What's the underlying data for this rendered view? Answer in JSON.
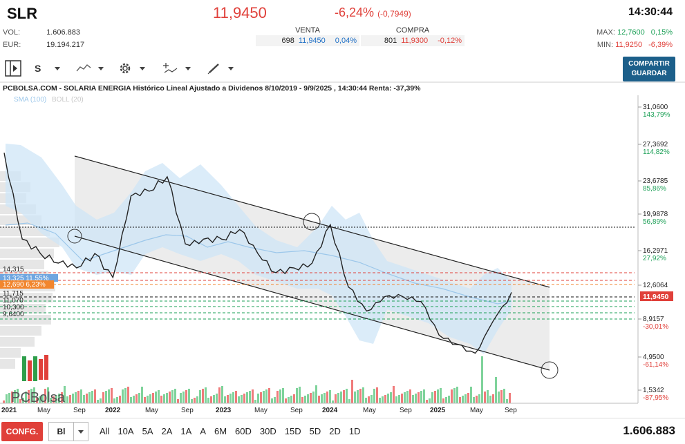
{
  "header": {
    "ticker": "SLR",
    "price": "11,9450",
    "change_pct": "-6,24%",
    "change_abs": "(-0,7949)",
    "time": "14:30:44",
    "vol_label": "VOL:",
    "vol_value": "1.606.883",
    "eur_label": "EUR:",
    "eur_value": "19.194.217",
    "venta": {
      "title": "VENTA",
      "qty": "698",
      "price": "11,9450",
      "pct": "0,04%"
    },
    "compra": {
      "title": "COMPRA",
      "qty": "801",
      "price": "11,9300",
      "pct": "-0,12%"
    },
    "max_label": "MAX:",
    "max_value": "12,7600",
    "max_pct": "0,15%",
    "min_label": "MIN:",
    "min_value": "11,9250",
    "min_pct": "-6,39%"
  },
  "toolbar": {
    "scale_label": "S",
    "share_label_1": "COMPARTIR",
    "share_label_2": "GUARDAR"
  },
  "chart": {
    "title": "PCBOLSA.COM - SOLARIA ENERGIA Histórico Lineal Ajustado a Dividenos 8/10/2019 - 9/9/2025 , 14:30:44 Renta: -37,39%",
    "indicator_sma": "SMA (100)",
    "indicator_boll": "BOLL (20)",
    "right_ticks": [
      {
        "price": "31,0600",
        "pct": "143,79%",
        "pos": true
      },
      {
        "price": "27,3692",
        "pct": "114,82%",
        "pos": true
      },
      {
        "price": "23,6785",
        "pct": "85,86%",
        "pos": true
      },
      {
        "price": "19,9878",
        "pct": "56,89%",
        "pos": true
      },
      {
        "price": "16,2971",
        "pct": "27,92%",
        "pos": true
      },
      {
        "price": "12,6064",
        "pct": "",
        "pos": true
      },
      {
        "price": "8,9157",
        "pct": "-30,01%",
        "pos": false
      },
      {
        "price": "4,9500",
        "pct": "-61,14%",
        "pos": false
      },
      {
        "price": "1,5342",
        "pct": "-87,95%",
        "pos": false
      }
    ],
    "current_price_tag": "11,9450",
    "left_levels": [
      "14,315",
      "13,325  11,55%",
      "12,690  6,23%",
      "11,715",
      "11,070",
      "10,300",
      "9,6400"
    ],
    "x_labels": [
      "2021",
      "May",
      "Sep",
      "2022",
      "May",
      "Sep",
      "2023",
      "May",
      "Sep",
      "2024",
      "May",
      "Sep",
      "2025",
      "May",
      "Sep"
    ],
    "logo_text": "PCBolsa"
  },
  "chart_data": {
    "type": "line",
    "title": "PCBOLSA.COM - SOLARIA ENERGIA Histórico Lineal Ajustado a Dividenos 8/10/2019 - 9/9/2025 , 14:30:44 Renta: -37,39%",
    "x": [
      "2021-01",
      "2021-03",
      "2021-05",
      "2021-07",
      "2021-09",
      "2021-11",
      "2022-01",
      "2022-03",
      "2022-05",
      "2022-07",
      "2022-09",
      "2022-11",
      "2023-01",
      "2023-03",
      "2023-05",
      "2023-07",
      "2023-09",
      "2023-11",
      "2024-01",
      "2024-03",
      "2024-05",
      "2024-07",
      "2024-09",
      "2024-11",
      "2025-01",
      "2025-03",
      "2025-05",
      "2025-07",
      "2025-09"
    ],
    "series": [
      {
        "values": [
          26.5,
          17.5,
          16.0,
          15.0,
          14.5,
          16.0,
          13.5,
          22.0,
          22.5,
          24.0,
          17.0,
          17.5,
          17.5,
          18.5,
          16.0,
          14.0,
          14.5,
          15.0,
          19.0,
          12.5,
          10.0,
          11.5,
          11.5,
          11.0,
          7.5,
          6.5,
          5.6,
          9.0,
          11.95
        ]
      }
    ],
    "ylim": [
      1.5342,
      31.06
    ],
    "ylabel": "",
    "xlabel": ""
  },
  "bottom": {
    "config_label": "CONFG.",
    "mode_label": "Bl",
    "ranges": [
      "All",
      "10A",
      "5A",
      "2A",
      "1A",
      "A",
      "6M",
      "60D",
      "30D",
      "15D",
      "5D",
      "2D",
      "1D"
    ],
    "volume_total": "1.606.883"
  }
}
